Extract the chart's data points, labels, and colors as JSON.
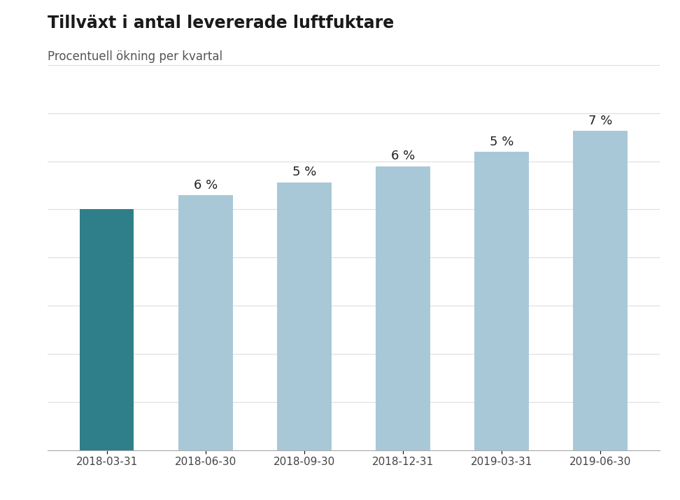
{
  "title": "Tillväxt i antal levererade luftfuktare",
  "subtitle": "Procentuell ökning per kvartal",
  "categories": [
    "2018-03-31",
    "2018-06-30",
    "2018-09-30",
    "2018-12-31",
    "2019-03-31",
    "2019-06-30"
  ],
  "values": [
    100,
    106,
    111.3,
    117.98,
    123.88,
    132.55
  ],
  "bar_labels": [
    "",
    "6 %",
    "5 %",
    "6 %",
    "5 %",
    "7 %"
  ],
  "bar_colors": [
    "#2e7f8a",
    "#a8c8d8",
    "#a8c8d8",
    "#a8c8d8",
    "#a8c8d8",
    "#a8c8d8"
  ],
  "background_color": "#ffffff",
  "title_fontsize": 17,
  "subtitle_fontsize": 12,
  "label_fontsize": 13,
  "tick_fontsize": 11,
  "ylim": [
    0,
    160
  ],
  "bar_width": 0.55,
  "grid_color": "#dddddd",
  "grid_linewidth": 0.8
}
